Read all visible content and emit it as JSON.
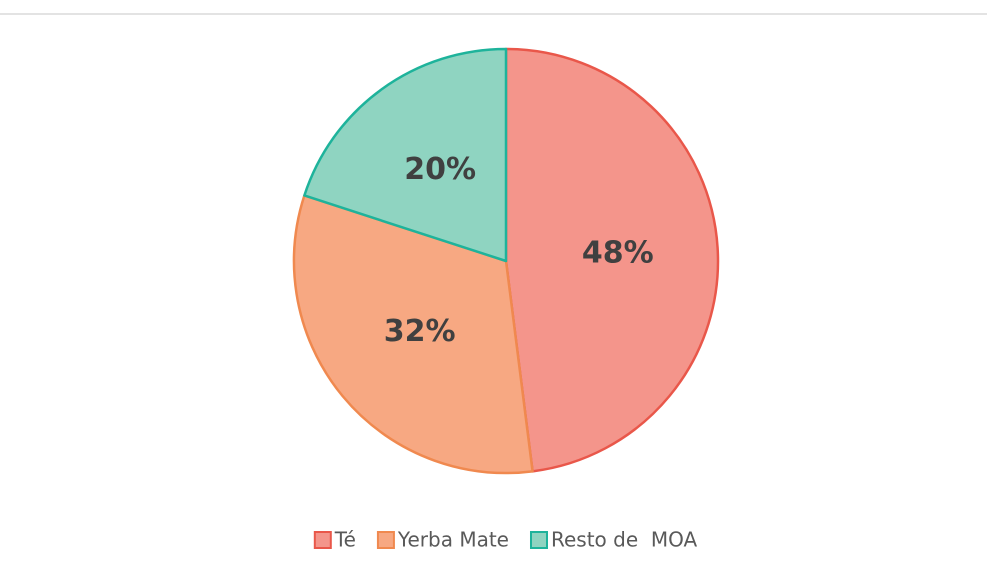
{
  "chart_data": {
    "type": "pie",
    "categories": [
      "Té",
      "Yerba Mate",
      "Resto de  MOA"
    ],
    "values": [
      48,
      32,
      20
    ],
    "value_labels": [
      "48%",
      "32%",
      "20%"
    ],
    "colors": [
      "#f4958b",
      "#f7a882",
      "#8fd4c1"
    ],
    "edge_colors": [
      "#e9574a",
      "#f0894f",
      "#1eb39b"
    ],
    "legend": "bottom"
  }
}
